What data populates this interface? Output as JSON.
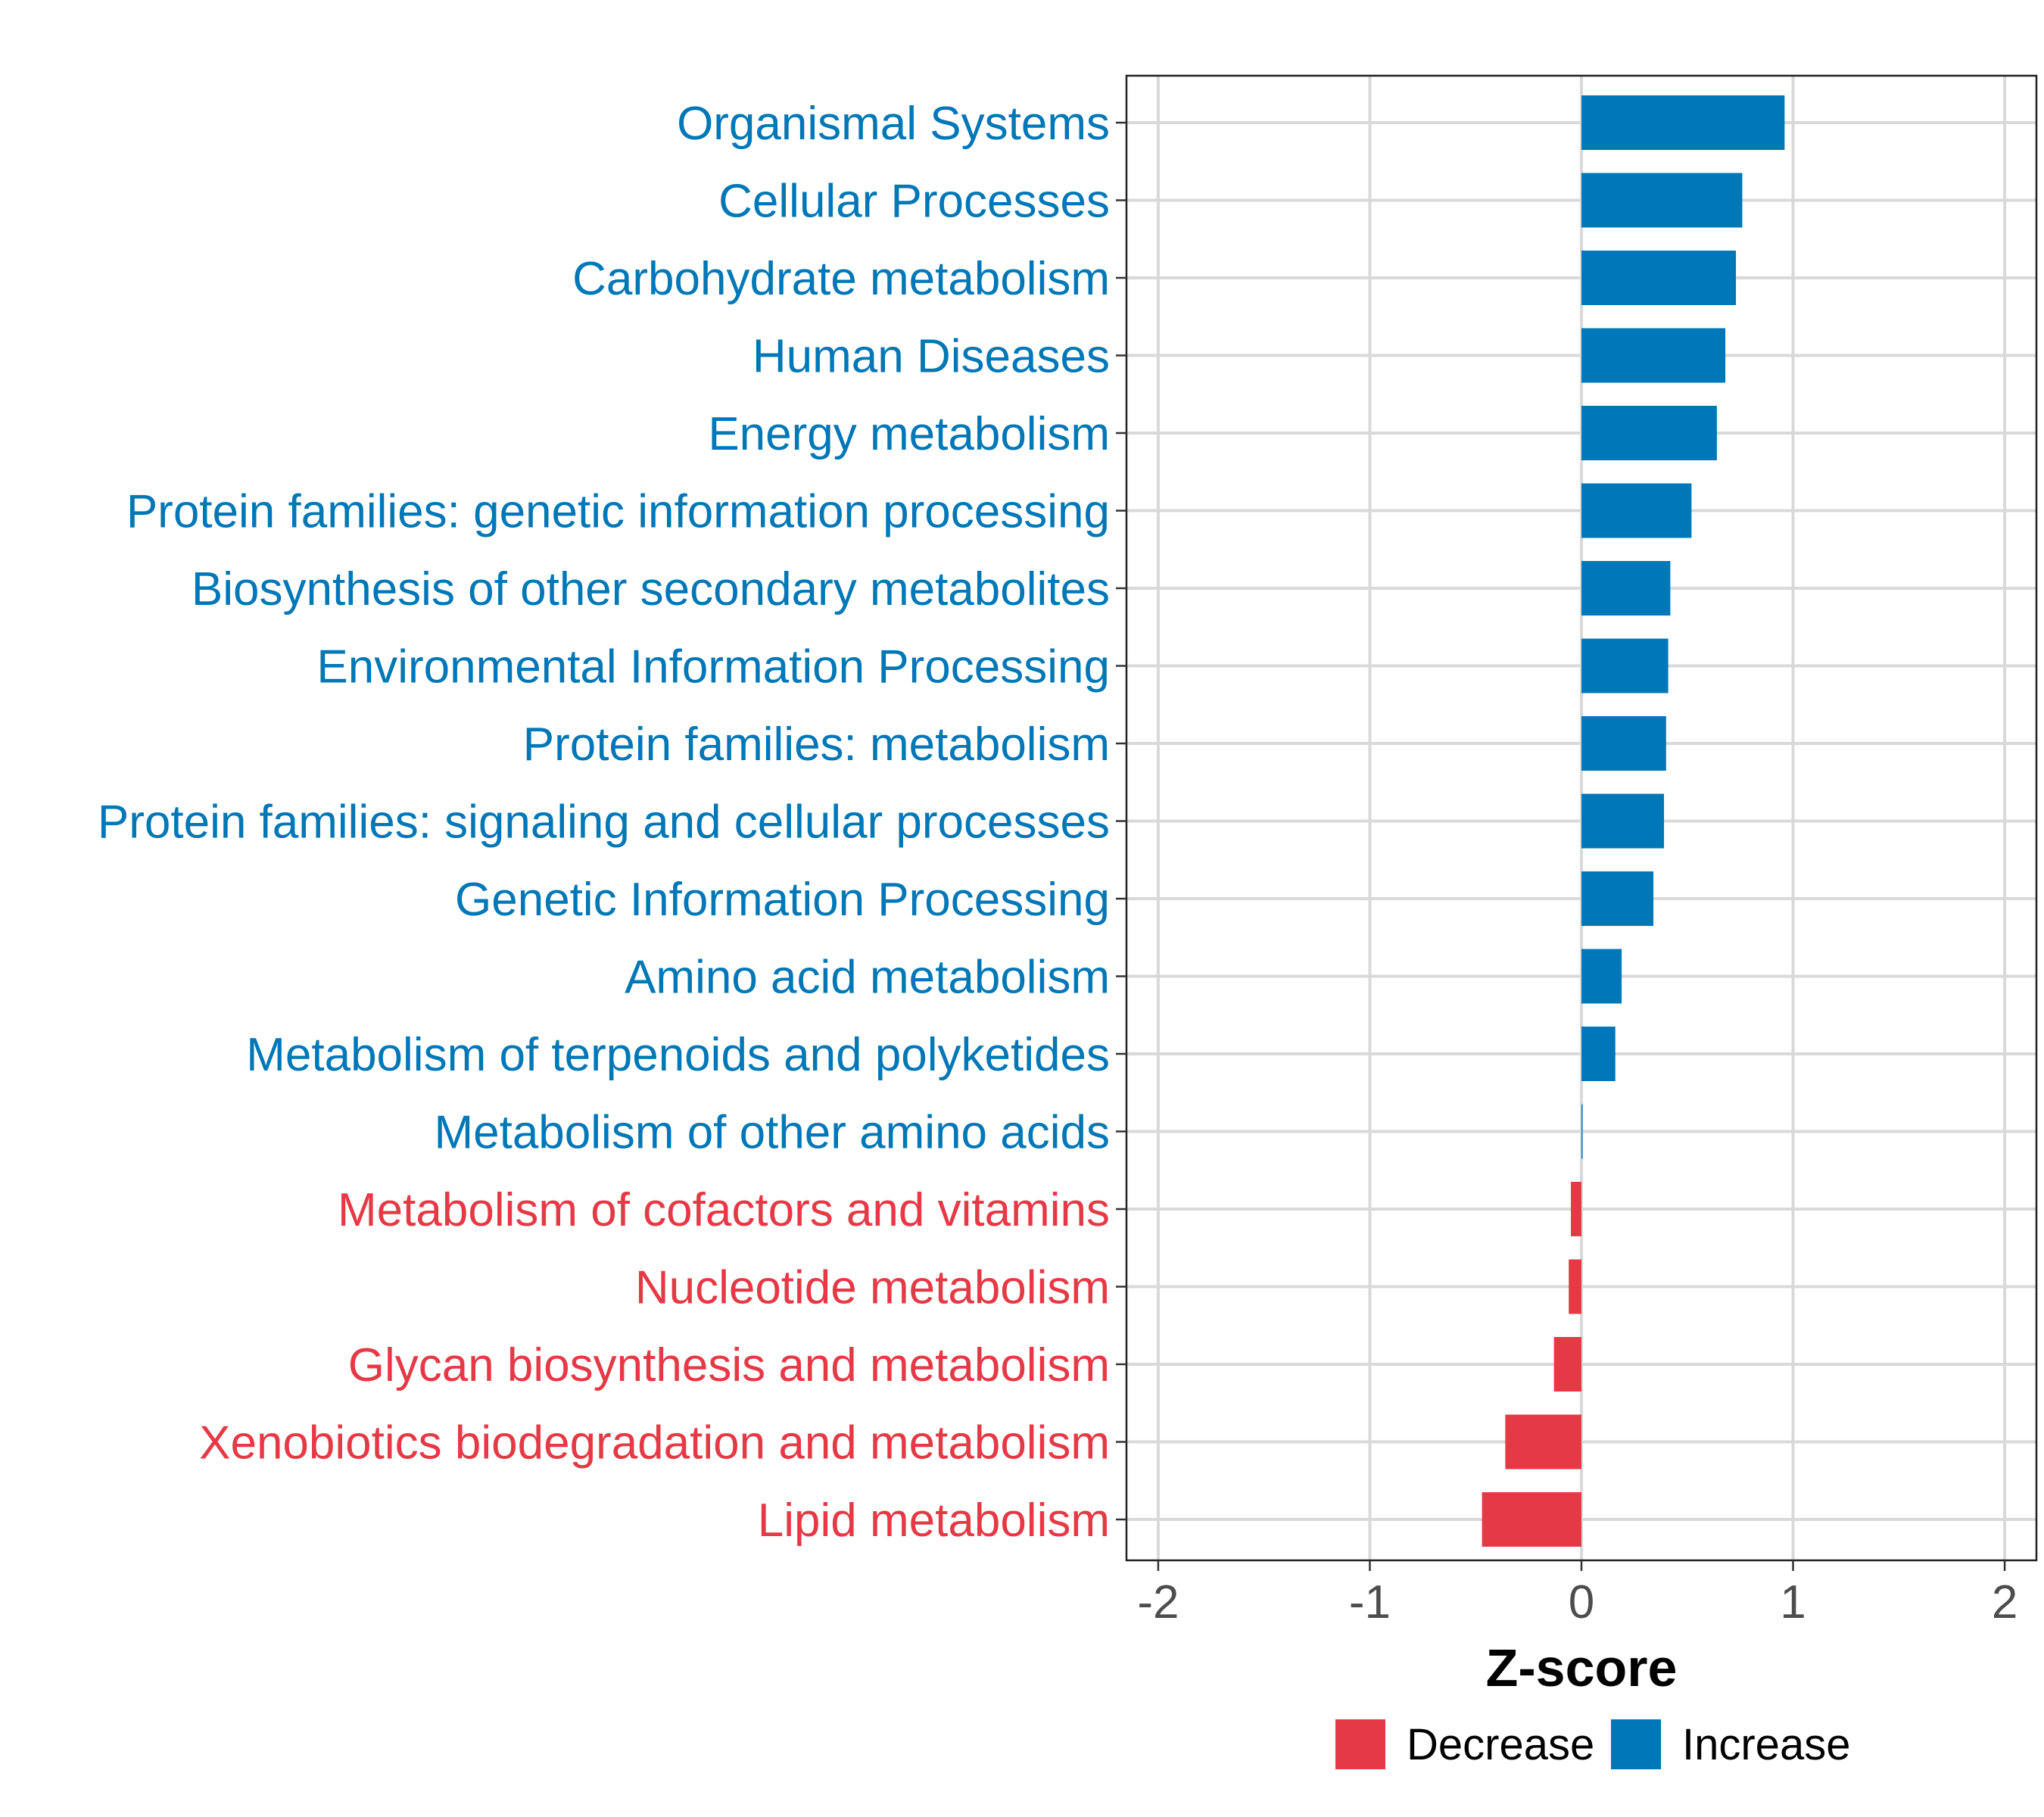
{
  "chart_data": {
    "type": "bar",
    "orientation": "horizontal",
    "title": "",
    "xlabel": "Z-score",
    "ylabel": "",
    "xlim": [
      -2.15,
      2.15
    ],
    "x_ticks": [
      -2,
      -1,
      0,
      1,
      2
    ],
    "x_tick_labels": [
      "-2",
      "-1",
      "0",
      "1",
      "2"
    ],
    "grid": true,
    "legend_position": "bottom",
    "colors": {
      "Decrease": "#e63946",
      "Increase": "#0077b6"
    },
    "legend": [
      {
        "label": "Decrease",
        "color": "#e63946"
      },
      {
        "label": "Increase",
        "color": "#0077b6"
      }
    ],
    "categories": [
      "Organismal Systems",
      "Cellular Processes",
      "Carbohydrate metabolism",
      "Human Diseases",
      "Energy metabolism",
      "Protein families: genetic information processing",
      "Biosynthesis of other secondary metabolites",
      "Environmental Information Processing",
      "Protein families: metabolism",
      "Protein families: signaling and cellular processes",
      "Genetic Information Processing",
      "Amino acid metabolism",
      "Metabolism of terpenoids and polyketides",
      "Metabolism of other amino acids",
      "Metabolism of cofactors and vitamins",
      "Nucleotide metabolism",
      "Glycan biosynthesis and metabolism",
      "Xenobiotics biodegradation and metabolism",
      "Lipid metabolism"
    ],
    "values": [
      0.96,
      0.76,
      0.73,
      0.68,
      0.64,
      0.52,
      0.42,
      0.41,
      0.4,
      0.39,
      0.34,
      0.19,
      0.16,
      0.005,
      -0.05,
      -0.06,
      -0.13,
      -0.36,
      -0.47
    ],
    "groups": [
      "Increase",
      "Increase",
      "Increase",
      "Increase",
      "Increase",
      "Increase",
      "Increase",
      "Increase",
      "Increase",
      "Increase",
      "Increase",
      "Increase",
      "Increase",
      "Increase",
      "Decrease",
      "Decrease",
      "Decrease",
      "Decrease",
      "Decrease"
    ]
  }
}
